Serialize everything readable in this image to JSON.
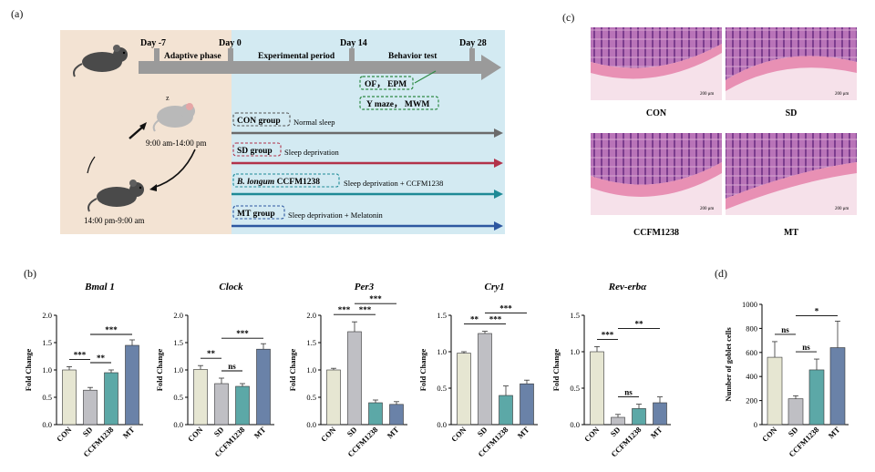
{
  "panels": {
    "a": "(a)",
    "b": "(b)",
    "c": "(c)",
    "d": "(d)"
  },
  "timeline": {
    "days": [
      "Day -7",
      "Day 0",
      "Day 14",
      "Day 28"
    ],
    "phases": [
      "Adaptive phase",
      "Experimental period",
      "Behavior test"
    ],
    "tests": [
      "OF， EPM",
      "Y maze， MWM"
    ],
    "cycle": {
      "z": "z",
      "day_time": "9:00 am-14:00 pm",
      "night_time": "14:00 pm-9:00 am"
    },
    "groups": [
      {
        "name": "CON group",
        "desc": "Normal sleep",
        "color": "#6b6b6b",
        "box": "#555555"
      },
      {
        "name": "SD group",
        "desc": "Sleep deprivation",
        "color": "#b2334a",
        "box": "#b2334a"
      },
      {
        "name_italic": "B. longum",
        "name": " CCFM1238",
        "desc": "Sleep deprivation + CCFM1238",
        "color": "#1e8a96",
        "box": "#1e8a96"
      },
      {
        "name": "MT group",
        "desc": "Sleep deprivation + Melatonin",
        "color": "#2d57a0",
        "box": "#2d57a0"
      }
    ]
  },
  "histology": {
    "labels": [
      "CON",
      "SD",
      "CCFM1238",
      "MT"
    ],
    "scale": "200 μm"
  },
  "bar_colors": [
    "#e6e6d2",
    "#bfbfc4",
    "#5ca8a7",
    "#6a82a8"
  ],
  "chart_data": [
    {
      "type": "bar",
      "title": "Bmal 1",
      "ylabel": "Fold Change",
      "categories": [
        "CON",
        "SD",
        "CCFM1238",
        "MT"
      ],
      "values": [
        1.0,
        0.63,
        0.95,
        1.45
      ],
      "errors": [
        0.06,
        0.05,
        0.05,
        0.1
      ],
      "ylim": [
        0,
        2.0
      ],
      "yticks": [
        "0.0",
        "0.5",
        "1.0",
        "1.5",
        "2.0"
      ],
      "sig": [
        {
          "a": 0,
          "b": 1,
          "label": "***"
        },
        {
          "a": 1,
          "b": 2,
          "label": "**"
        },
        {
          "a": 1,
          "b": 3,
          "label": "***"
        }
      ]
    },
    {
      "type": "bar",
      "title": "Clock",
      "ylabel": "Fold Change",
      "categories": [
        "CON",
        "SD",
        "CCFM1238",
        "MT"
      ],
      "values": [
        1.01,
        0.75,
        0.7,
        1.38
      ],
      "errors": [
        0.07,
        0.1,
        0.05,
        0.1
      ],
      "ylim": [
        0,
        2.0
      ],
      "yticks": [
        "0.0",
        "0.5",
        "1.0",
        "1.5",
        "2.0"
      ],
      "sig": [
        {
          "a": 0,
          "b": 1,
          "label": "**"
        },
        {
          "a": 1,
          "b": 2,
          "label": "ns"
        },
        {
          "a": 1,
          "b": 3,
          "label": "***"
        }
      ]
    },
    {
      "type": "bar",
      "title": "Per3",
      "ylabel": "Fold Change",
      "categories": [
        "CON",
        "SD",
        "CCFM1238",
        "MT"
      ],
      "values": [
        1.0,
        1.7,
        0.4,
        0.37
      ],
      "errors": [
        0.03,
        0.18,
        0.05,
        0.05
      ],
      "ylim": [
        0,
        2.0
      ],
      "yticks": [
        "0.0",
        "0.5",
        "1.0",
        "1.5",
        "2.0"
      ],
      "sig": [
        {
          "a": 0,
          "b": 1,
          "label": "***"
        },
        {
          "a": 1,
          "b": 2,
          "label": "***"
        },
        {
          "a": 1,
          "b": 3,
          "label": "***"
        }
      ]
    },
    {
      "type": "bar",
      "title": "Cry1",
      "ylabel": "Fold Change",
      "categories": [
        "CON",
        "SD",
        "CCFM1238",
        "MT"
      ],
      "values": [
        0.98,
        1.25,
        0.4,
        0.56
      ],
      "errors": [
        0.02,
        0.03,
        0.13,
        0.05
      ],
      "ylim": [
        0,
        1.5
      ],
      "yticks": [
        "0.0",
        "0.5",
        "1.0",
        "1.5"
      ],
      "sig": [
        {
          "a": 0,
          "b": 1,
          "label": "**"
        },
        {
          "a": 1,
          "b": 2,
          "label": "***"
        },
        {
          "a": 1,
          "b": 3,
          "label": "***"
        }
      ]
    },
    {
      "type": "bar",
      "title": "Rev-erbα",
      "ylabel": "Fold Change",
      "categories": [
        "CON",
        "SD",
        "CCFM1238",
        "MT"
      ],
      "values": [
        1.0,
        0.1,
        0.22,
        0.3
      ],
      "errors": [
        0.07,
        0.04,
        0.06,
        0.08
      ],
      "ylim": [
        0,
        1.5
      ],
      "yticks": [
        "0.0",
        "0.5",
        "1.0",
        "1.5"
      ],
      "sig": [
        {
          "a": 0,
          "b": 1,
          "label": "***"
        },
        {
          "a": 1,
          "b": 2,
          "label": "ns"
        },
        {
          "a": 1,
          "b": 3,
          "label": "**"
        }
      ]
    },
    {
      "type": "bar",
      "title": "",
      "ylabel": "Number of goblet cells",
      "categories": [
        "CON",
        "SD",
        "CCFM1238",
        "MT"
      ],
      "values": [
        560,
        215,
        455,
        640
      ],
      "errors": [
        130,
        25,
        90,
        220
      ],
      "ylim": [
        0,
        1000
      ],
      "yticks": [
        "0",
        "200",
        "400",
        "600",
        "800",
        "1000"
      ],
      "sig": [
        {
          "a": 0,
          "b": 1,
          "label": "ns"
        },
        {
          "a": 1,
          "b": 2,
          "label": "ns"
        },
        {
          "a": 1,
          "b": 3,
          "label": "*"
        }
      ]
    }
  ]
}
